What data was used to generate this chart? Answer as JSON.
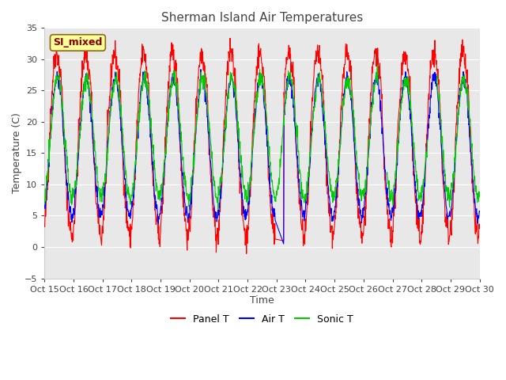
{
  "title": "Sherman Island Air Temperatures",
  "xlabel": "Time",
  "ylabel": "Temperature (C)",
  "ylim": [
    -5,
    35
  ],
  "x_tick_labels": [
    "Oct 15",
    "Oct 16",
    "Oct 17",
    "Oct 18",
    "Oct 19",
    "Oct 20",
    "Oct 21",
    "Oct 22",
    "Oct 23",
    "Oct 24",
    "Oct 25",
    "Oct 26",
    "Oct 27",
    "Oct 28",
    "Oct 29",
    "Oct 30"
  ],
  "panel_color": "#ff0000",
  "air_color": "#0000ff",
  "sonic_color": "#00cc00",
  "background_color": "#e8e8e8",
  "annotation_text": "SI_mixed",
  "annotation_color": "#8b0000",
  "annotation_bg": "#ffff99",
  "legend_labels": [
    "Panel T",
    "Air T",
    "Sonic T"
  ],
  "n_days": 15,
  "points_per_day": 96
}
